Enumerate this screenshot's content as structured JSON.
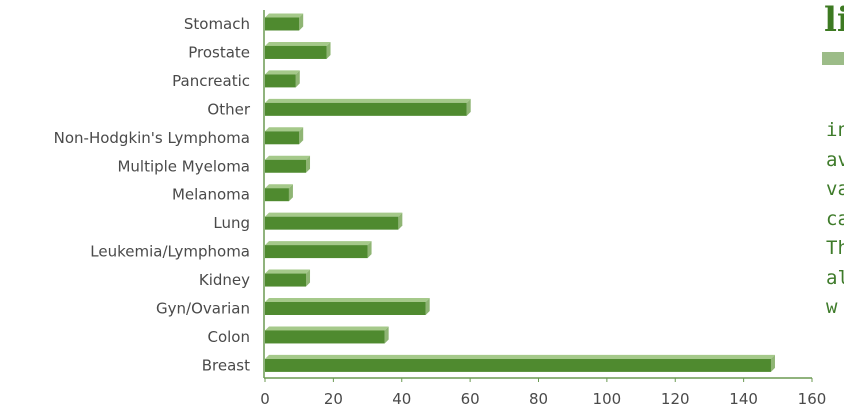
{
  "chart_data": {
    "type": "bar",
    "orientation": "horizontal",
    "categories": [
      "Stomach",
      "Prostate",
      "Pancreatic",
      "Other",
      "Non-Hodgkin's Lymphoma",
      "Multiple Myeloma",
      "Melanoma",
      "Lung",
      "Leukemia/Lymphoma",
      "Kidney",
      "Gyn/Ovarian",
      "Colon",
      "Breast"
    ],
    "values": [
      10,
      18,
      9,
      59,
      10,
      12,
      7,
      39,
      30,
      12,
      47,
      35,
      148
    ],
    "xlim": [
      0,
      160
    ],
    "xticks": [
      0,
      20,
      40,
      60,
      80,
      100,
      120,
      140,
      160
    ],
    "title": "",
    "xlabel": "",
    "ylabel": "",
    "grid": false,
    "bar_color": "#4f8a2f",
    "bar_top_color": "#a5c98a"
  },
  "side": {
    "heading": "li",
    "lines": [
      "in",
      "av",
      "va",
      "ca",
      "Th",
      "al",
      "w"
    ],
    "accent": "#3d7a22"
  }
}
